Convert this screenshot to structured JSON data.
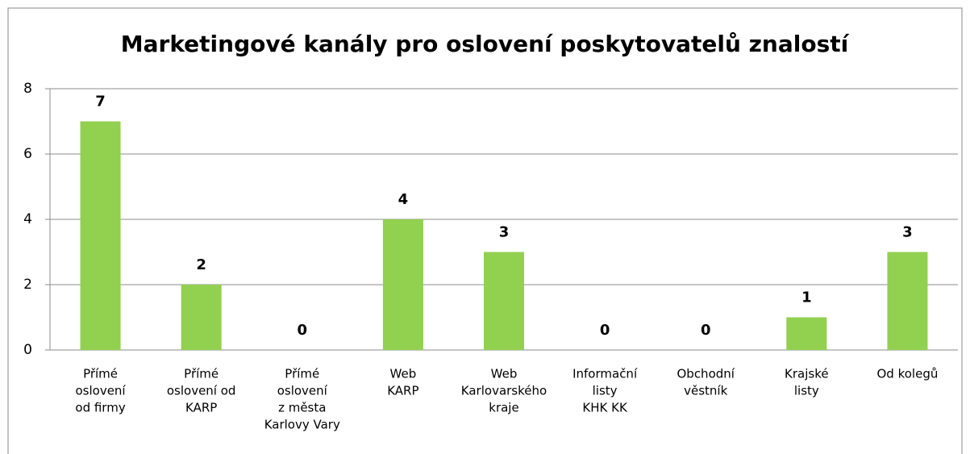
{
  "chart_data": {
    "type": "bar",
    "title": "Marketingové kanály pro oslovení poskytovatelů znalostí",
    "categories": [
      [
        "Přímé",
        "oslovení",
        "od firmy"
      ],
      [
        "Přímé",
        "oslovení od",
        "KARP"
      ],
      [
        "Přímé",
        "oslovení",
        "z města",
        "Karlovy Vary"
      ],
      [
        "Web",
        "KARP"
      ],
      [
        "Web",
        "Karlovarského",
        "kraje"
      ],
      [
        "Informační",
        "listy",
        "KHK KK"
      ],
      [
        "Obchodní",
        "věstník"
      ],
      [
        "Krajské",
        "listy"
      ],
      [
        "Od kolegů"
      ]
    ],
    "values": [
      7,
      2,
      0,
      4,
      3,
      0,
      0,
      1,
      3
    ],
    "color": "#92d050",
    "ylim": [
      0,
      8
    ],
    "yticks": [
      0,
      2,
      4,
      6,
      8
    ],
    "grid": true
  }
}
